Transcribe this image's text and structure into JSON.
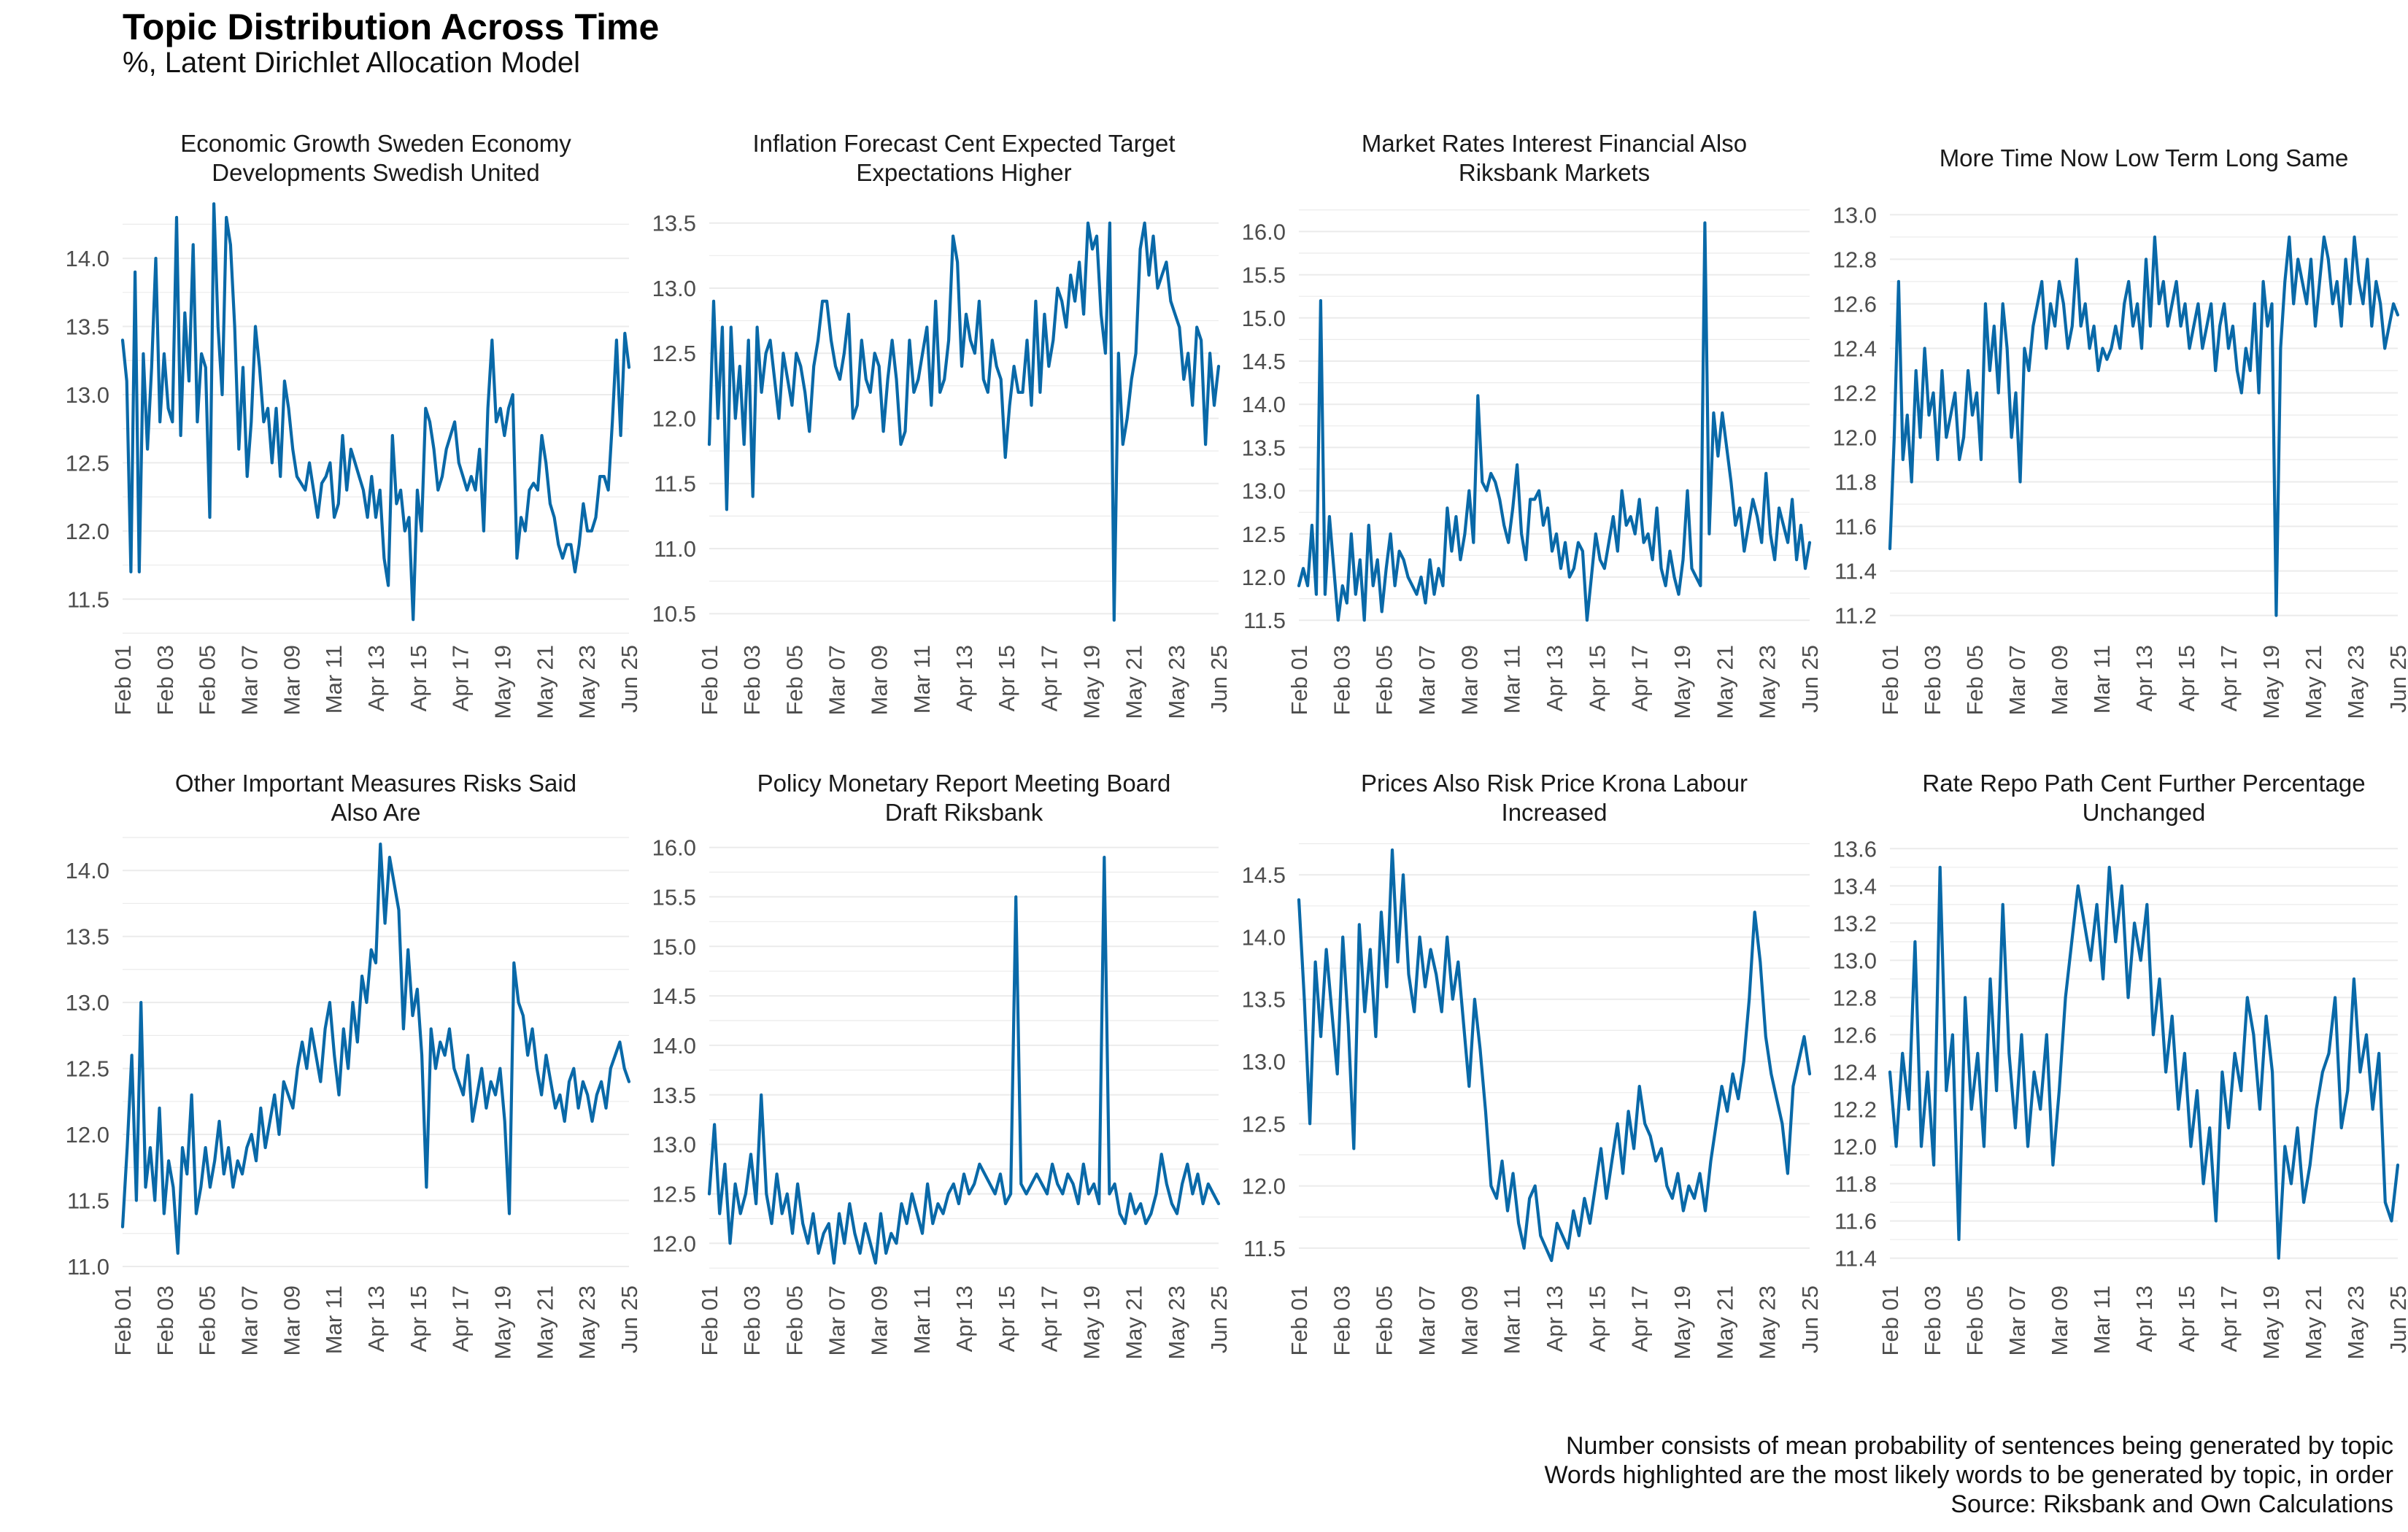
{
  "header": {
    "title": "Topic Distribution Across Time",
    "subtitle": "%, Latent Dirichlet Allocation Model"
  },
  "footer": {
    "lines": [
      "Number consists of mean probability of sentences being generated by topic",
      "Words highlighted are the most likely words to be generated by topic, in order",
      "Source: Riksbank and Own Calculations"
    ]
  },
  "colors": {
    "line": "#0969a8",
    "grid": "#ebebeb",
    "tick_text": "#4d4d4d"
  },
  "chart_data": [
    {
      "type": "line",
      "title": "Economic Growth Sweden Economy Developments Swedish United",
      "title_lines": [
        "Economic Growth Sweden Economy",
        "Developments Swedish United"
      ],
      "x_ticks": [
        "Feb 01",
        "Feb 03",
        "Feb 05",
        "Mar 07",
        "Mar 09",
        "Mar 11",
        "Apr 13",
        "Apr 15",
        "Apr 17",
        "May 19",
        "May 21",
        "May 23",
        "Jun 25"
      ],
      "y_ticks": [
        11.5,
        12.0,
        12.5,
        13.0,
        13.5,
        14.0
      ],
      "ylim": [
        11.25,
        14.45
      ],
      "grid": true,
      "values": [
        13.4,
        13.1,
        11.7,
        13.9,
        11.7,
        13.3,
        12.6,
        13.2,
        14.0,
        12.8,
        13.3,
        12.9,
        12.8,
        14.3,
        12.7,
        13.6,
        13.1,
        14.1,
        12.8,
        13.3,
        13.2,
        12.1,
        14.4,
        13.5,
        13.0,
        14.3,
        14.1,
        13.5,
        12.6,
        13.2,
        12.4,
        12.8,
        13.5,
        13.2,
        12.8,
        12.9,
        12.5,
        12.9,
        12.4,
        13.1,
        12.9,
        12.6,
        12.4,
        12.35,
        12.3,
        12.5,
        12.3,
        12.1,
        12.35,
        12.4,
        12.5,
        12.1,
        12.2,
        12.7,
        12.3,
        12.6,
        12.5,
        12.4,
        12.3,
        12.1,
        12.4,
        12.1,
        12.3,
        11.8,
        11.6,
        12.7,
        12.2,
        12.3,
        12.0,
        12.1,
        11.35,
        12.3,
        12.0,
        12.9,
        12.8,
        12.6,
        12.3,
        12.4,
        12.6,
        12.7,
        12.8,
        12.5,
        12.4,
        12.3,
        12.4,
        12.3,
        12.6,
        12.0,
        12.9,
        13.4,
        12.8,
        12.9,
        12.7,
        12.9,
        13.0,
        11.8,
        12.1,
        12.0,
        12.3,
        12.35,
        12.3,
        12.7,
        12.5,
        12.2,
        12.1,
        11.9,
        11.8,
        11.9,
        11.9,
        11.7,
        11.9,
        12.2,
        12.0,
        12.0,
        12.1,
        12.4,
        12.4,
        12.3,
        12.8,
        13.4,
        12.7,
        13.45,
        13.2
      ]
    },
    {
      "type": "line",
      "title": "Inflation Forecast Cent Expected Target Expectations Higher",
      "title_lines": [
        "Inflation Forecast Cent Expected Target",
        "Expectations Higher"
      ],
      "x_ticks": [
        "Feb 01",
        "Feb 03",
        "Feb 05",
        "Mar 07",
        "Mar 09",
        "Mar 11",
        "Apr 13",
        "Apr 15",
        "Apr 17",
        "May 19",
        "May 21",
        "May 23",
        "Jun 25"
      ],
      "y_ticks": [
        10.5,
        11.0,
        11.5,
        12.0,
        12.5,
        13.0,
        13.5
      ],
      "ylim": [
        10.35,
        13.7
      ],
      "grid": true,
      "values": [
        11.8,
        12.9,
        12.0,
        12.7,
        11.3,
        12.7,
        12.0,
        12.4,
        11.8,
        12.6,
        11.4,
        12.7,
        12.2,
        12.5,
        12.6,
        12.3,
        12.0,
        12.5,
        12.3,
        12.1,
        12.5,
        12.4,
        12.2,
        11.9,
        12.4,
        12.6,
        12.9,
        12.9,
        12.6,
        12.4,
        12.3,
        12.5,
        12.8,
        12.0,
        12.1,
        12.6,
        12.3,
        12.2,
        12.5,
        12.4,
        11.9,
        12.3,
        12.6,
        12.3,
        11.8,
        11.9,
        12.6,
        12.2,
        12.3,
        12.5,
        12.7,
        12.1,
        12.9,
        12.2,
        12.3,
        12.6,
        13.4,
        13.2,
        12.4,
        12.8,
        12.6,
        12.5,
        12.9,
        12.3,
        12.2,
        12.6,
        12.4,
        12.3,
        11.7,
        12.1,
        12.4,
        12.2,
        12.2,
        12.6,
        12.1,
        12.9,
        12.2,
        12.8,
        12.4,
        12.6,
        13.0,
        12.9,
        12.7,
        13.1,
        12.9,
        13.2,
        12.8,
        13.5,
        13.3,
        13.4,
        12.8,
        12.5,
        13.5,
        10.45,
        12.5,
        11.8,
        12.0,
        12.3,
        12.5,
        13.3,
        13.5,
        13.1,
        13.4,
        13.0,
        13.1,
        13.2,
        12.9,
        12.8,
        12.7,
        12.3,
        12.5,
        12.1,
        12.7,
        12.6,
        11.8,
        12.5,
        12.1,
        12.4
      ]
    },
    {
      "type": "line",
      "title": "Market Rates Interest Financial Also Riksbank Markets",
      "title_lines": [
        "Market Rates Interest Financial Also",
        "Riksbank Markets"
      ],
      "x_ticks": [
        "Feb 01",
        "Feb 03",
        "Feb 05",
        "Mar 07",
        "Mar 09",
        "Mar 11",
        "Apr 13",
        "Apr 15",
        "Apr 17",
        "May 19",
        "May 21",
        "May 23",
        "Jun 25"
      ],
      "y_ticks": [
        11.5,
        12.0,
        12.5,
        13.0,
        13.5,
        14.0,
        14.5,
        15.0,
        15.5,
        16.0
      ],
      "ylim": [
        11.35,
        16.4
      ],
      "grid": true,
      "values": [
        11.9,
        12.1,
        11.9,
        12.6,
        11.8,
        15.2,
        11.8,
        12.7,
        12.1,
        11.5,
        11.9,
        11.7,
        12.5,
        11.8,
        12.2,
        11.5,
        12.6,
        11.9,
        12.2,
        11.6,
        12.1,
        12.5,
        11.9,
        12.3,
        12.2,
        12.0,
        11.9,
        11.8,
        12.0,
        11.7,
        12.2,
        11.8,
        12.1,
        11.9,
        12.8,
        12.3,
        12.7,
        12.2,
        12.5,
        13.0,
        12.4,
        14.1,
        13.1,
        13.0,
        13.2,
        13.1,
        12.9,
        12.6,
        12.4,
        12.8,
        13.3,
        12.5,
        12.2,
        12.9,
        12.9,
        13.0,
        12.6,
        12.8,
        12.3,
        12.5,
        12.1,
        12.4,
        12.0,
        12.1,
        12.4,
        12.3,
        11.5,
        12.0,
        12.5,
        12.2,
        12.1,
        12.4,
        12.7,
        12.3,
        13.0,
        12.6,
        12.7,
        12.5,
        12.9,
        12.4,
        12.5,
        12.2,
        12.8,
        12.1,
        11.9,
        12.3,
        12.0,
        11.8,
        12.2,
        13.0,
        12.1,
        12.0,
        11.9,
        16.1,
        12.5,
        13.9,
        13.4,
        13.9,
        13.5,
        13.1,
        12.6,
        12.8,
        12.3,
        12.6,
        12.9,
        12.7,
        12.4,
        13.2,
        12.5,
        12.2,
        12.8,
        12.6,
        12.4,
        12.9,
        12.2,
        12.6,
        12.1,
        12.4
      ]
    },
    {
      "type": "line",
      "title": "More Time Now Low Term Long Same",
      "title_lines": [
        "More Time Now Low Term Long Same"
      ],
      "x_ticks": [
        "Feb 01",
        "Feb 03",
        "Feb 05",
        "Mar 07",
        "Mar 09",
        "Mar 11",
        "Apr 13",
        "Apr 15",
        "Apr 17",
        "May 19",
        "May 21",
        "May 23",
        "Jun 25"
      ],
      "y_ticks": [
        11.2,
        11.4,
        11.6,
        11.8,
        12.0,
        12.2,
        12.4,
        12.6,
        12.8,
        13.0
      ],
      "ylim": [
        11.12,
        13.08
      ],
      "grid": true,
      "values": [
        11.5,
        12.0,
        12.7,
        11.9,
        12.1,
        11.8,
        12.3,
        12.0,
        12.4,
        12.1,
        12.2,
        11.9,
        12.3,
        12.0,
        12.1,
        12.2,
        11.9,
        12.0,
        12.3,
        12.1,
        12.2,
        11.9,
        12.6,
        12.3,
        12.5,
        12.2,
        12.6,
        12.4,
        12.0,
        12.2,
        11.8,
        12.4,
        12.3,
        12.5,
        12.6,
        12.7,
        12.4,
        12.6,
        12.5,
        12.7,
        12.6,
        12.4,
        12.5,
        12.8,
        12.5,
        12.6,
        12.4,
        12.5,
        12.3,
        12.4,
        12.35,
        12.4,
        12.5,
        12.4,
        12.6,
        12.7,
        12.5,
        12.6,
        12.4,
        12.8,
        12.5,
        12.9,
        12.6,
        12.7,
        12.5,
        12.6,
        12.7,
        12.5,
        12.6,
        12.4,
        12.5,
        12.6,
        12.4,
        12.5,
        12.6,
        12.3,
        12.5,
        12.6,
        12.4,
        12.5,
        12.3,
        12.2,
        12.4,
        12.3,
        12.6,
        12.2,
        12.7,
        12.5,
        12.6,
        11.2,
        12.4,
        12.7,
        12.9,
        12.6,
        12.8,
        12.7,
        12.6,
        12.8,
        12.5,
        12.7,
        12.9,
        12.8,
        12.6,
        12.7,
        12.5,
        12.8,
        12.6,
        12.9,
        12.7,
        12.6,
        12.8,
        12.5,
        12.7,
        12.6,
        12.4,
        12.5,
        12.6,
        12.55
      ]
    },
    {
      "type": "line",
      "title": "Other Important Measures Risks Said Also Are",
      "title_lines": [
        "Other Important Measures Risks Said",
        "Also Are"
      ],
      "x_ticks": [
        "Feb 01",
        "Feb 03",
        "Feb 05",
        "Mar 07",
        "Mar 09",
        "Mar 11",
        "Apr 13",
        "Apr 15",
        "Apr 17",
        "May 19",
        "May 21",
        "May 23",
        "Jun 25"
      ],
      "y_ticks": [
        11.0,
        11.5,
        12.0,
        12.5,
        13.0,
        13.5,
        14.0
      ],
      "ylim": [
        10.95,
        14.25
      ],
      "grid": true,
      "values": [
        11.3,
        11.9,
        12.6,
        11.5,
        13.0,
        11.6,
        11.9,
        11.5,
        12.2,
        11.4,
        11.8,
        11.6,
        11.1,
        11.9,
        11.7,
        12.3,
        11.4,
        11.6,
        11.9,
        11.6,
        11.8,
        12.1,
        11.7,
        11.9,
        11.6,
        11.8,
        11.7,
        11.9,
        12.0,
        11.8,
        12.2,
        11.9,
        12.1,
        12.3,
        12.0,
        12.4,
        12.3,
        12.2,
        12.5,
        12.7,
        12.5,
        12.8,
        12.6,
        12.4,
        12.8,
        13.0,
        12.6,
        12.3,
        12.8,
        12.5,
        13.0,
        12.7,
        13.2,
        13.0,
        13.4,
        13.3,
        14.2,
        13.6,
        14.1,
        13.9,
        13.7,
        12.8,
        13.4,
        12.9,
        13.1,
        12.6,
        11.6,
        12.8,
        12.5,
        12.7,
        12.6,
        12.8,
        12.5,
        12.4,
        12.3,
        12.6,
        12.1,
        12.3,
        12.5,
        12.2,
        12.4,
        12.3,
        12.5,
        12.1,
        11.4,
        13.3,
        13.0,
        12.9,
        12.6,
        12.8,
        12.5,
        12.3,
        12.6,
        12.4,
        12.2,
        12.3,
        12.1,
        12.4,
        12.5,
        12.2,
        12.4,
        12.3,
        12.1,
        12.3,
        12.4,
        12.2,
        12.5,
        12.6,
        12.7,
        12.5,
        12.4
      ]
    },
    {
      "type": "line",
      "title": "Policy Monetary Report Meeting Board Draft Riksbank",
      "title_lines": [
        "Policy Monetary Report Meeting Board",
        "Draft Riksbank"
      ],
      "x_ticks": [
        "Feb 01",
        "Feb 03",
        "Feb 05",
        "Mar 07",
        "Mar 09",
        "Mar 11",
        "Apr 13",
        "Apr 15",
        "Apr 17",
        "May 19",
        "May 21",
        "May 23",
        "Jun 25"
      ],
      "y_ticks": [
        12.0,
        12.5,
        13.0,
        13.5,
        14.0,
        14.5,
        15.0,
        15.5,
        16.0
      ],
      "ylim": [
        11.7,
        16.1
      ],
      "grid": true,
      "values": [
        12.5,
        13.2,
        12.3,
        12.8,
        12.0,
        12.6,
        12.3,
        12.5,
        12.9,
        12.4,
        13.5,
        12.5,
        12.2,
        12.7,
        12.3,
        12.5,
        12.1,
        12.6,
        12.2,
        12.0,
        12.3,
        11.9,
        12.1,
        12.2,
        11.8,
        12.3,
        12.0,
        12.4,
        12.1,
        11.9,
        12.2,
        12.0,
        11.8,
        12.3,
        11.9,
        12.1,
        12.0,
        12.4,
        12.2,
        12.5,
        12.3,
        12.1,
        12.6,
        12.2,
        12.4,
        12.3,
        12.5,
        12.6,
        12.4,
        12.7,
        12.5,
        12.6,
        12.8,
        12.7,
        12.6,
        12.5,
        12.7,
        12.4,
        12.5,
        15.5,
        12.6,
        12.5,
        12.6,
        12.7,
        12.6,
        12.5,
        12.8,
        12.6,
        12.5,
        12.7,
        12.6,
        12.4,
        12.8,
        12.5,
        12.6,
        12.4,
        15.9,
        12.5,
        12.6,
        12.3,
        12.2,
        12.5,
        12.3,
        12.4,
        12.2,
        12.3,
        12.5,
        12.9,
        12.6,
        12.4,
        12.3,
        12.6,
        12.8,
        12.5,
        12.7,
        12.4,
        12.6,
        12.5,
        12.4
      ]
    },
    {
      "type": "line",
      "title": "Prices Also Risk Price Krona Labour Increased",
      "title_lines": [
        "Prices Also Risk Price Krona Labour",
        "Increased"
      ],
      "x_ticks": [
        "Feb 01",
        "Feb 03",
        "Feb 05",
        "Mar 07",
        "Mar 09",
        "Mar 11",
        "Apr 13",
        "Apr 15",
        "Apr 17",
        "May 19",
        "May 21",
        "May 23",
        "Jun 25"
      ],
      "y_ticks": [
        11.5,
        12.0,
        12.5,
        13.0,
        13.5,
        14.0,
        14.5
      ],
      "ylim": [
        11.3,
        14.8
      ],
      "grid": true,
      "values": [
        14.3,
        13.5,
        12.5,
        13.8,
        13.2,
        13.9,
        13.4,
        12.9,
        14.0,
        13.3,
        12.3,
        14.1,
        13.4,
        13.9,
        13.2,
        14.2,
        13.6,
        14.7,
        13.8,
        14.5,
        13.7,
        13.4,
        14.0,
        13.6,
        13.9,
        13.7,
        13.4,
        14.0,
        13.5,
        13.8,
        13.3,
        12.8,
        13.5,
        13.1,
        12.6,
        12.0,
        11.9,
        12.2,
        11.8,
        12.1,
        11.7,
        11.5,
        11.9,
        12.0,
        11.6,
        11.5,
        11.4,
        11.7,
        11.6,
        11.5,
        11.8,
        11.6,
        11.9,
        11.7,
        12.0,
        12.3,
        11.9,
        12.2,
        12.5,
        12.1,
        12.6,
        12.3,
        12.8,
        12.5,
        12.4,
        12.2,
        12.3,
        12.0,
        11.9,
        12.1,
        11.8,
        12.0,
        11.9,
        12.1,
        11.8,
        12.2,
        12.5,
        12.8,
        12.6,
        12.9,
        12.7,
        13.0,
        13.5,
        14.2,
        13.8,
        13.2,
        12.9,
        12.7,
        12.5,
        12.1,
        12.8,
        13.0,
        13.2,
        12.9
      ]
    },
    {
      "type": "line",
      "title": "Rate Repo Path Cent Further Percentage Unchanged",
      "title_lines": [
        "Rate Repo Path Cent Further Percentage",
        "Unchanged"
      ],
      "x_ticks": [
        "Feb 01",
        "Feb 03",
        "Feb 05",
        "Mar 07",
        "Mar 09",
        "Mar 11",
        "Apr 13",
        "Apr 15",
        "Apr 17",
        "May 19",
        "May 21",
        "May 23",
        "Jun 25"
      ],
      "y_ticks": [
        11.4,
        11.6,
        11.8,
        12.0,
        12.2,
        12.4,
        12.6,
        12.8,
        13.0,
        13.2,
        13.4,
        13.6
      ],
      "ylim": [
        11.32,
        13.66
      ],
      "grid": true,
      "values": [
        12.4,
        12.0,
        12.5,
        12.2,
        13.1,
        12.0,
        12.4,
        11.9,
        13.5,
        12.3,
        12.6,
        11.5,
        12.8,
        12.2,
        12.5,
        12.0,
        12.9,
        12.3,
        13.3,
        12.5,
        12.1,
        12.6,
        12.0,
        12.4,
        12.2,
        12.6,
        11.9,
        12.3,
        12.8,
        13.1,
        13.4,
        13.2,
        13.0,
        13.3,
        12.9,
        13.5,
        13.1,
        13.4,
        12.8,
        13.2,
        13.0,
        13.3,
        12.6,
        12.9,
        12.4,
        12.7,
        12.2,
        12.5,
        12.0,
        12.3,
        11.8,
        12.1,
        11.6,
        12.4,
        12.1,
        12.5,
        12.3,
        12.8,
        12.6,
        12.2,
        12.7,
        12.4,
        11.4,
        12.0,
        11.8,
        12.1,
        11.7,
        11.9,
        12.2,
        12.4,
        12.5,
        12.8,
        12.1,
        12.3,
        12.9,
        12.4,
        12.6,
        12.2,
        12.5,
        11.7,
        11.6,
        11.9
      ]
    }
  ]
}
